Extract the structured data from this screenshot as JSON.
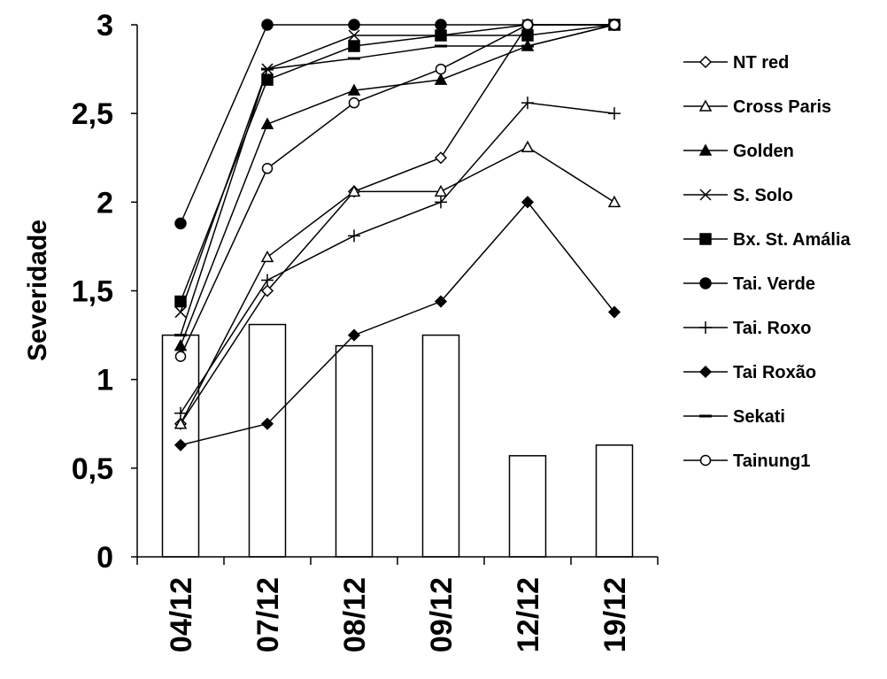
{
  "chart_data": {
    "type": "line",
    "title": "",
    "ylabel": "Severidade",
    "xlabel": "",
    "ylim": [
      0,
      3
    ],
    "yticks": [
      "0",
      "0,5",
      "1",
      "1,5",
      "2",
      "2,5",
      "3"
    ],
    "categories": [
      "04/12",
      "07/12",
      "08/12",
      "09/12",
      "12/12",
      "19/12"
    ],
    "bars": [
      1.25,
      1.31,
      1.19,
      1.25,
      0.57,
      0.63
    ],
    "legend_position": "right",
    "series": [
      {
        "name": "NT red",
        "marker": "diamond-open",
        "values": [
          0.75,
          1.5,
          2.06,
          2.25,
          3.0,
          3.0
        ]
      },
      {
        "name": "Cross Paris",
        "marker": "triangle-open",
        "values": [
          0.75,
          1.69,
          2.06,
          2.06,
          2.31,
          2.0
        ]
      },
      {
        "name": "Golden",
        "marker": "triangle-filled",
        "values": [
          1.19,
          2.44,
          2.63,
          2.69,
          2.88,
          3.0
        ]
      },
      {
        "name": "S. Solo",
        "marker": "x",
        "values": [
          1.38,
          2.75,
          2.94,
          2.94,
          3.0,
          3.0
        ]
      },
      {
        "name": "Bx. St. Amália",
        "marker": "square-filled",
        "values": [
          1.44,
          2.69,
          2.88,
          2.94,
          2.94,
          3.0
        ]
      },
      {
        "name": "Tai. Verde",
        "marker": "circle-filled",
        "values": [
          1.88,
          3.0,
          3.0,
          3.0,
          3.0,
          3.0
        ]
      },
      {
        "name": "Tai. Roxo",
        "marker": "plus",
        "values": [
          0.81,
          1.56,
          1.81,
          2.0,
          2.56,
          2.5
        ]
      },
      {
        "name": "Tai Roxão",
        "marker": "diamond-filled",
        "values": [
          0.63,
          0.75,
          1.25,
          1.44,
          2.0,
          1.38
        ]
      },
      {
        "name": "Sekati",
        "marker": "dash",
        "values": [
          1.25,
          2.75,
          2.81,
          2.88,
          2.88,
          3.0
        ]
      },
      {
        "name": "Tainung1",
        "marker": "circle-open",
        "values": [
          1.13,
          2.19,
          2.56,
          2.75,
          3.0,
          3.0
        ]
      }
    ]
  }
}
